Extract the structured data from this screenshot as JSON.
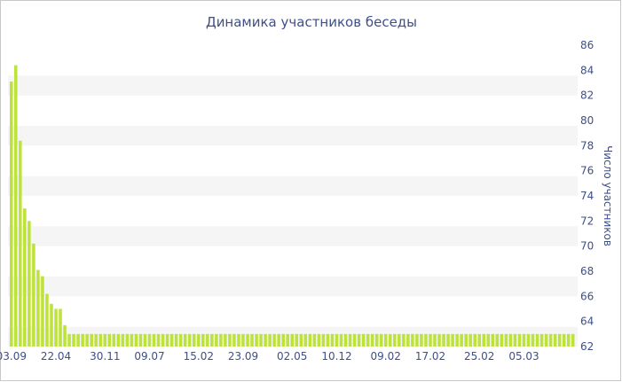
{
  "chart_data": {
    "type": "bar",
    "title": "Динамика участников беседы",
    "xlabel": "",
    "ylabel": "Число участников",
    "ylim": [
      62,
      86
    ],
    "yticks": [
      62,
      64,
      66,
      68,
      70,
      72,
      74,
      76,
      78,
      80,
      82,
      84,
      86
    ],
    "y_axis_position": "right",
    "grid": "alternating-horizontal-bands",
    "legend": "none",
    "colors": {
      "bar": "#bde33a",
      "band": "#f5f5f5",
      "text": "#3e4f8a",
      "frame": "#c8c8c8"
    },
    "x_tick_labels": [
      {
        "index": 0,
        "label": "03.09"
      },
      {
        "index": 10,
        "label": "22.04"
      },
      {
        "index": 21,
        "label": "30.11"
      },
      {
        "index": 31,
        "label": "09.07"
      },
      {
        "index": 42,
        "label": "15.02"
      },
      {
        "index": 52,
        "label": "23.09"
      },
      {
        "index": 63,
        "label": "02.05"
      },
      {
        "index": 73,
        "label": "10.12"
      },
      {
        "index": 84,
        "label": "09.02"
      },
      {
        "index": 94,
        "label": "17.02"
      },
      {
        "index": 105,
        "label": "25.02"
      },
      {
        "index": 115,
        "label": "05.03"
      }
    ],
    "values": [
      83.1,
      84.4,
      78.4,
      73.0,
      72.0,
      70.2,
      68.1,
      67.6,
      66.2,
      65.4,
      65.0,
      65.0,
      63.7,
      63.0,
      63.0,
      63.0,
      63.0,
      63.0,
      63.0,
      63.0,
      63.0,
      63.0,
      63.0,
      63.0,
      63.0,
      63.0,
      63.0,
      63.0,
      63.0,
      63.0,
      63.0,
      63.0,
      63.0,
      63.0,
      63.0,
      63.0,
      63.0,
      63.0,
      63.0,
      63.0,
      63.0,
      63.0,
      63.0,
      63.0,
      63.0,
      63.0,
      63.0,
      63.0,
      63.0,
      63.0,
      63.0,
      63.0,
      63.0,
      63.0,
      63.0,
      63.0,
      63.0,
      63.0,
      63.0,
      63.0,
      63.0,
      63.0,
      63.0,
      63.0,
      63.0,
      63.0,
      63.0,
      63.0,
      63.0,
      63.0,
      63.0,
      63.0,
      63.0,
      63.0,
      63.0,
      63.0,
      63.0,
      63.0,
      63.0,
      63.0,
      63.0,
      63.0,
      63.0,
      63.0,
      63.0,
      63.0,
      63.0,
      63.0,
      63.0,
      63.0,
      63.0,
      63.0,
      63.0,
      63.0,
      63.0,
      63.0,
      63.0,
      63.0,
      63.0,
      63.0,
      63.0,
      63.0,
      63.0,
      63.0,
      63.0,
      63.0,
      63.0,
      63.0,
      63.0,
      63.0,
      63.0,
      63.0,
      63.0,
      63.0,
      63.0,
      63.0,
      63.0,
      63.0,
      63.0,
      63.0,
      63.0,
      63.0,
      63.0,
      63.0,
      63.0,
      63.0,
      63.0
    ]
  }
}
